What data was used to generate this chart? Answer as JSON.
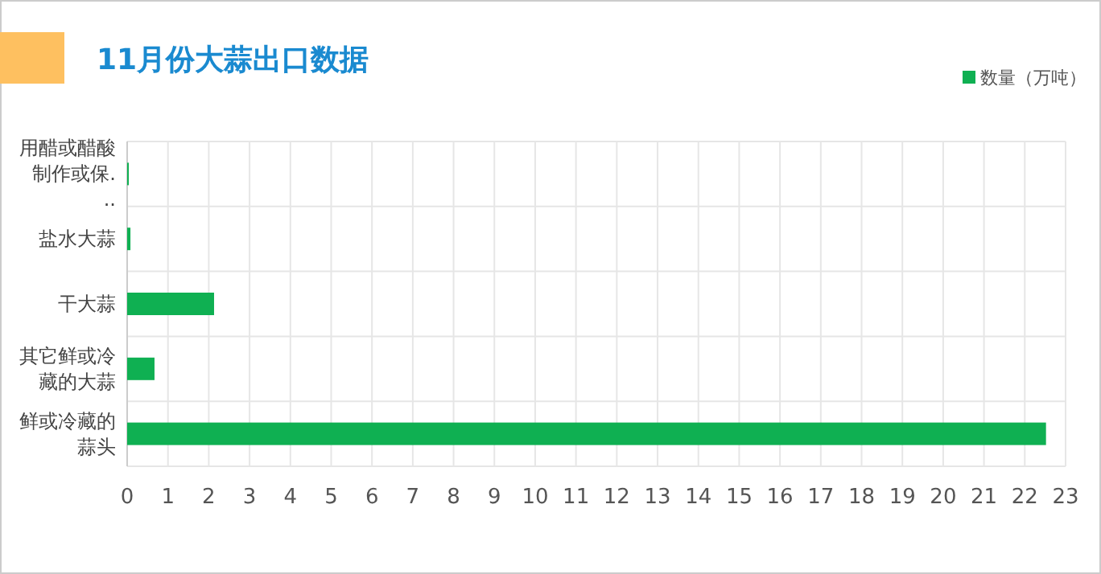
{
  "chart_data": {
    "type": "bar",
    "orientation": "horizontal",
    "title": "11月份大蒜出口数据",
    "categories": [
      "用醋或醋酸制作或保...",
      "盐水大蒜",
      "干大蒜",
      "其它鲜或冷藏的大蒜",
      "鲜或冷藏的蒜头"
    ],
    "series": [
      {
        "name": "数量（万吨）",
        "color": "#0fb052",
        "values": [
          0.04,
          0.08,
          2.13,
          0.67,
          22.52
        ]
      }
    ],
    "xlim": [
      0,
      23
    ],
    "xticks": [
      0,
      1,
      2,
      3,
      4,
      5,
      6,
      7,
      8,
      9,
      10,
      11,
      12,
      13,
      14,
      15,
      16,
      17,
      18,
      19,
      20,
      21,
      22,
      23
    ],
    "grid": true,
    "legend": "top right"
  }
}
